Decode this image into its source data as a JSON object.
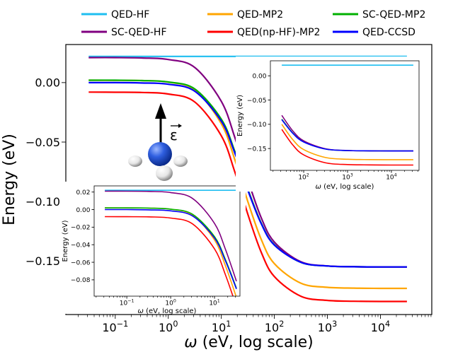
{
  "chart_data": [
    {
      "id": "main",
      "type": "line",
      "xscale": "log",
      "xlabel": "ω (eV, log scale)",
      "ylabel": "Energy (eV)",
      "xlim": [
        0.0117,
        93000
      ],
      "ylim": [
        -0.195,
        0.032
      ],
      "xticks": [
        {
          "value": 0.1,
          "base": "10",
          "exp": "−1"
        },
        {
          "value": 1,
          "base": "10",
          "exp": "0"
        },
        {
          "value": 10,
          "base": "10",
          "exp": "1"
        },
        {
          "value": 100,
          "base": "10",
          "exp": "2"
        },
        {
          "value": 1000,
          "base": "10",
          "exp": "3"
        },
        {
          "value": 10000,
          "base": "10",
          "exp": "4"
        }
      ],
      "yticks": [
        {
          "value": 0.0,
          "label": "0.00"
        },
        {
          "value": -0.05,
          "label": "−0.05"
        },
        {
          "value": -0.1,
          "label": "−0.10"
        },
        {
          "value": -0.15,
          "label": "−0.15"
        }
      ],
      "legend": "top (outside, 3 columns)",
      "grid": false
    },
    {
      "id": "inset-low",
      "type": "line",
      "xscale": "log",
      "xlabel": "ω (eV, log scale)",
      "ylabel": "Energy (eV)",
      "xlim": [
        0.018,
        38
      ],
      "xrange": [
        0.03,
        31.6
      ],
      "ylim": [
        -0.0986,
        0.027
      ],
      "xticks": [
        {
          "value": 0.1,
          "base": "10",
          "exp": "−1"
        },
        {
          "value": 1,
          "base": "10",
          "exp": "0"
        },
        {
          "value": 10,
          "base": "10",
          "exp": "1"
        }
      ],
      "yticks": [
        {
          "value": 0.02,
          "label": "0.02"
        },
        {
          "value": 0.0,
          "label": "0.00"
        },
        {
          "value": -0.02,
          "label": "−0.02"
        },
        {
          "value": -0.04,
          "label": "−0.04"
        },
        {
          "value": -0.06,
          "label": "−0.06"
        },
        {
          "value": -0.08,
          "label": "−0.08"
        }
      ]
    },
    {
      "id": "inset-high",
      "type": "line",
      "xscale": "log",
      "xlabel": "ω (eV, log scale)",
      "ylabel": "Energy (eV)",
      "xlim": [
        17.4,
        42700
      ],
      "xrange": [
        31.6,
        31700
      ],
      "ylim": [
        -0.195,
        0.031
      ],
      "xticks": [
        {
          "value": 100,
          "base": "10",
          "exp": "2"
        },
        {
          "value": 1000,
          "base": "10",
          "exp": "3"
        },
        {
          "value": 10000,
          "base": "10",
          "exp": "4"
        }
      ],
      "yticks": [
        {
          "value": 0.0,
          "label": "0.00"
        },
        {
          "value": -0.05,
          "label": "−0.05"
        },
        {
          "value": -0.1,
          "label": "−0.10"
        },
        {
          "value": -0.15,
          "label": "−0.15"
        }
      ]
    }
  ],
  "x": [
    0.0316,
    0.1,
    0.316,
    1,
    3.16,
    10,
    17.8,
    31.6,
    56.2,
    100,
    316,
    1000,
    3162,
    10000,
    31623
  ],
  "series": [
    {
      "name": "QED-HF",
      "color": "#1ebef0",
      "values": [
        0.022,
        0.022,
        0.022,
        0.022,
        0.022,
        0.022,
        0.022,
        0.022,
        0.022,
        0.022,
        0.022,
        0.022,
        0.022,
        0.022,
        0.022
      ]
    },
    {
      "name": "QED-MP2",
      "color": "#ffa500",
      "values": [
        0.002,
        0.0019,
        0.0017,
        0.0004,
        -0.0062,
        -0.0346,
        -0.0642,
        -0.1,
        -0.1315,
        -0.1522,
        -0.1686,
        -0.1721,
        -0.1728,
        -0.173,
        -0.173
      ]
    },
    {
      "name": "SC-QED-MP2",
      "color": "#00b000",
      "values": [
        0.002,
        0.002,
        0.0017,
        0.0005,
        -0.0054,
        -0.0308,
        -0.0573,
        -0.0895,
        -0.1178,
        -0.1363,
        -0.1511,
        -0.1542,
        -0.1548,
        -0.155,
        -0.155
      ]
    },
    {
      "name": "SC-QED-HF",
      "color": "#800080",
      "values": [
        0.021,
        0.021,
        0.0207,
        0.0194,
        0.0127,
        -0.0158,
        -0.0455,
        -0.0816,
        -0.1133,
        -0.1341,
        -0.1506,
        -0.1541,
        -0.1548,
        -0.155,
        -0.155
      ]
    },
    {
      "name": "QED(np-HF)-MP2",
      "color": "#ff0000",
      "values": [
        -0.008,
        -0.0081,
        -0.0083,
        -0.0096,
        -0.0163,
        -0.0448,
        -0.0745,
        -0.1106,
        -0.1423,
        -0.1631,
        -0.1796,
        -0.1831,
        -0.1838,
        -0.184,
        -0.184
      ]
    },
    {
      "name": "QED-CCSD",
      "color": "#0000ff",
      "values": [
        0.0,
        0.0,
        -0.0003,
        -0.0014,
        -0.0073,
        -0.0324,
        -0.0586,
        -0.0904,
        -0.1183,
        -0.1366,
        -0.1511,
        -0.1542,
        -0.1548,
        -0.155,
        -0.155
      ]
    }
  ],
  "annotation": {
    "field_label": "ε",
    "molecule": "NH3"
  }
}
